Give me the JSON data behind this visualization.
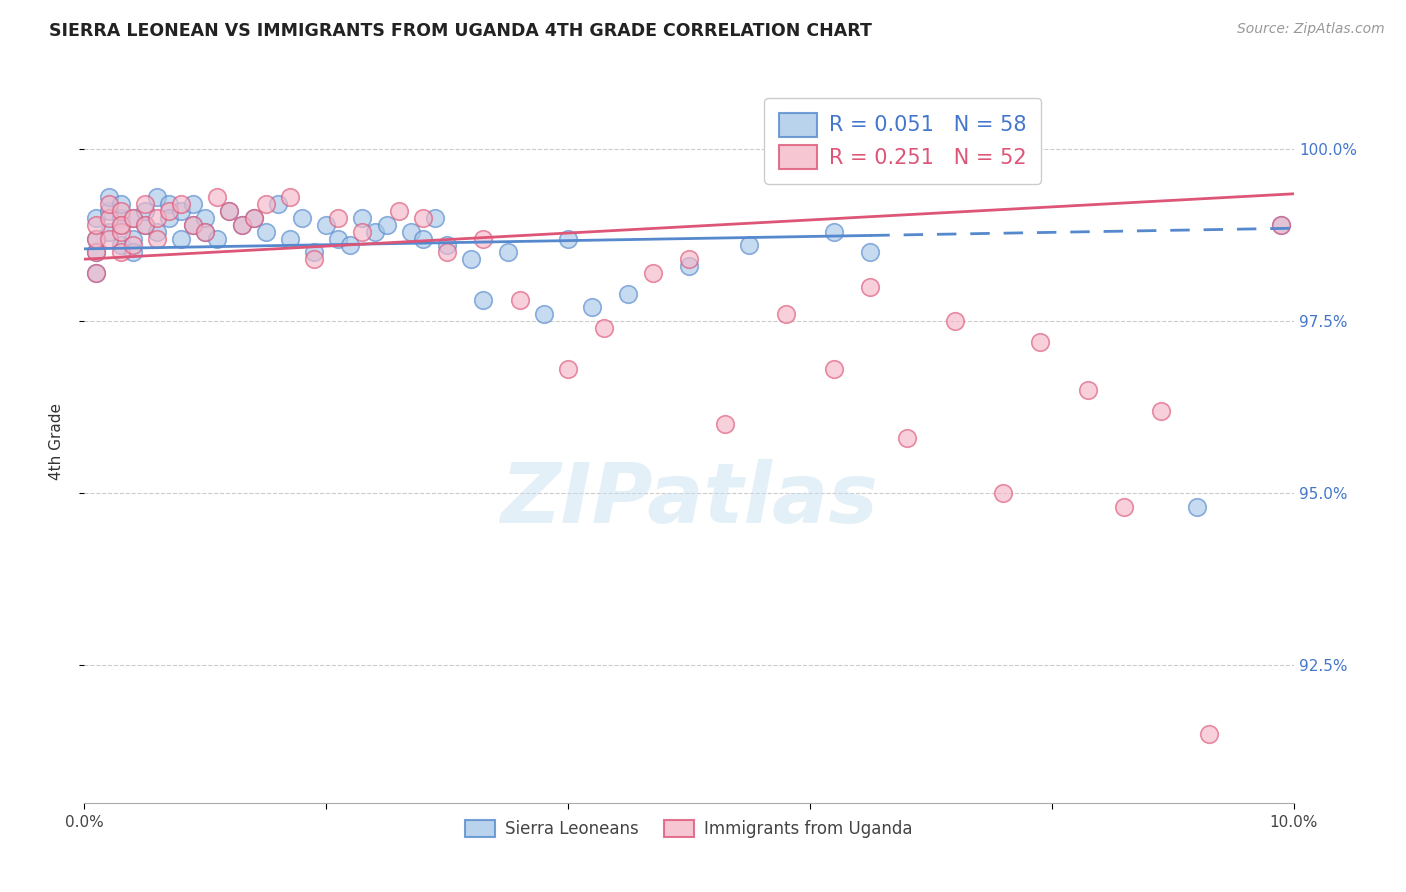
{
  "title": "SIERRA LEONEAN VS IMMIGRANTS FROM UGANDA 4TH GRADE CORRELATION CHART",
  "source": "Source: ZipAtlas.com",
  "ylabel": "4th Grade",
  "xlim": [
    0.0,
    0.1
  ],
  "ylim": [
    90.5,
    101.0
  ],
  "blue_color": "#a8c8e8",
  "pink_color": "#f4b8c8",
  "blue_line_color": "#5588cc",
  "pink_line_color": "#dd5577",
  "legend_blue_R": "0.051",
  "legend_blue_N": "58",
  "legend_pink_R": "0.251",
  "legend_pink_N": "52",
  "watermark": "ZIPatlas",
  "ytick_positions": [
    92.5,
    95.0,
    97.5,
    100.0
  ],
  "ytick_labels": [
    "92.5%",
    "95.0%",
    "97.5%",
    "100.0%"
  ],
  "blue_scatter_x": [
    0.001,
    0.001,
    0.001,
    0.001,
    0.002,
    0.002,
    0.002,
    0.003,
    0.003,
    0.003,
    0.003,
    0.004,
    0.004,
    0.004,
    0.005,
    0.005,
    0.006,
    0.006,
    0.007,
    0.007,
    0.008,
    0.008,
    0.009,
    0.009,
    0.01,
    0.01,
    0.011,
    0.012,
    0.013,
    0.014,
    0.015,
    0.016,
    0.017,
    0.018,
    0.019,
    0.02,
    0.021,
    0.022,
    0.023,
    0.024,
    0.025,
    0.027,
    0.028,
    0.029,
    0.03,
    0.032,
    0.033,
    0.035,
    0.038,
    0.04,
    0.042,
    0.045,
    0.05,
    0.055,
    0.062,
    0.065,
    0.092,
    0.099
  ],
  "blue_scatter_y": [
    98.5,
    98.7,
    99.0,
    98.2,
    99.1,
    98.8,
    99.3,
    99.0,
    98.6,
    98.9,
    99.2,
    98.7,
    99.0,
    98.5,
    98.9,
    99.1,
    99.3,
    98.8,
    99.2,
    99.0,
    99.1,
    98.7,
    98.9,
    99.2,
    98.8,
    99.0,
    98.7,
    99.1,
    98.9,
    99.0,
    98.8,
    99.2,
    98.7,
    99.0,
    98.5,
    98.9,
    98.7,
    98.6,
    99.0,
    98.8,
    98.9,
    98.8,
    98.7,
    99.0,
    98.6,
    98.4,
    97.8,
    98.5,
    97.6,
    98.7,
    97.7,
    97.9,
    98.3,
    98.6,
    98.8,
    98.5,
    94.8,
    98.9
  ],
  "pink_scatter_x": [
    0.001,
    0.001,
    0.001,
    0.001,
    0.002,
    0.002,
    0.002,
    0.003,
    0.003,
    0.003,
    0.003,
    0.004,
    0.004,
    0.005,
    0.005,
    0.006,
    0.006,
    0.007,
    0.008,
    0.009,
    0.01,
    0.011,
    0.012,
    0.013,
    0.014,
    0.015,
    0.017,
    0.019,
    0.021,
    0.023,
    0.026,
    0.028,
    0.03,
    0.033,
    0.036,
    0.04,
    0.043,
    0.047,
    0.05,
    0.053,
    0.058,
    0.062,
    0.065,
    0.068,
    0.072,
    0.076,
    0.079,
    0.083,
    0.086,
    0.089,
    0.093,
    0.099
  ],
  "pink_scatter_y": [
    98.5,
    98.7,
    98.9,
    98.2,
    99.0,
    98.7,
    99.2,
    98.8,
    99.1,
    98.5,
    98.9,
    99.0,
    98.6,
    98.9,
    99.2,
    98.7,
    99.0,
    99.1,
    99.2,
    98.9,
    98.8,
    99.3,
    99.1,
    98.9,
    99.0,
    99.2,
    99.3,
    98.4,
    99.0,
    98.8,
    99.1,
    99.0,
    98.5,
    98.7,
    97.8,
    96.8,
    97.4,
    98.2,
    98.4,
    96.0,
    97.6,
    96.8,
    98.0,
    95.8,
    97.5,
    95.0,
    97.2,
    96.5,
    94.8,
    96.2,
    91.5,
    98.9
  ],
  "blue_line_x_solid_end": 0.065,
  "blue_trendline_slope": 3.0,
  "blue_trendline_intercept": 98.55,
  "pink_trendline_slope": 9.5,
  "pink_trendline_intercept": 98.4
}
